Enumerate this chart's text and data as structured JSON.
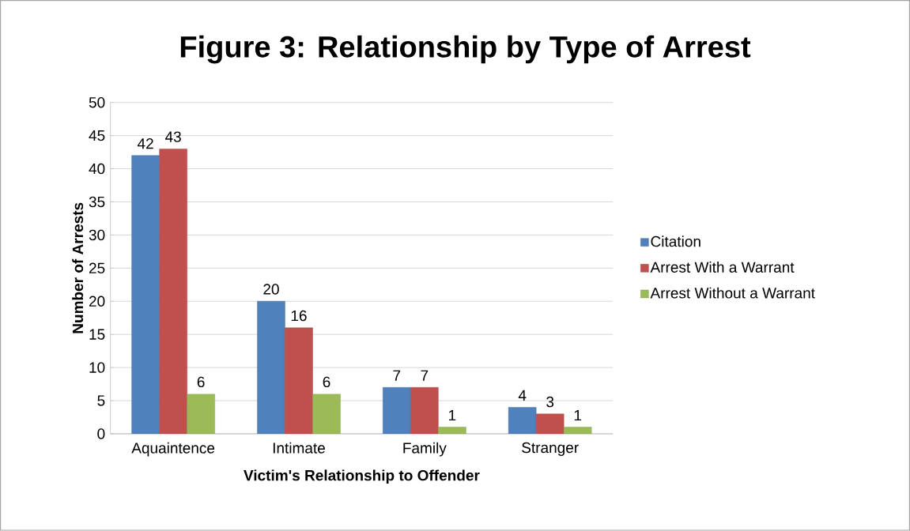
{
  "chart_data": {
    "type": "bar",
    "title": "Figure 3: Relationship by Type of Arrest",
    "xlabel": "Victim's Relationship to Offender",
    "ylabel": "Number of Arrests",
    "categories": [
      "Aquaintence",
      "Intimate",
      "Family",
      "Stranger"
    ],
    "series": [
      {
        "name": "Citation",
        "color": "#4f81bd",
        "values": [
          42,
          20,
          7,
          4
        ]
      },
      {
        "name": "Arrest With a Warrant",
        "color": "#c0504d",
        "values": [
          43,
          16,
          7,
          3
        ]
      },
      {
        "name": "Arrest Without a Warrant",
        "color": "#9bbb59",
        "values": [
          6,
          6,
          1,
          1
        ]
      }
    ],
    "ylim": [
      0,
      50
    ],
    "yticks": [
      0,
      5,
      10,
      15,
      20,
      25,
      30,
      35,
      40,
      45,
      50
    ],
    "grid": "y",
    "legend": "right",
    "data_labels": true
  }
}
